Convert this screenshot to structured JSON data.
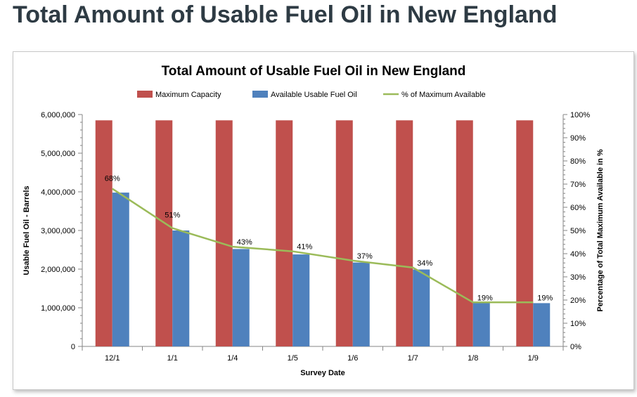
{
  "slide": {
    "title": "Total Amount of Usable Fuel Oil in New England"
  },
  "colors": {
    "max_capacity": "#c0504d",
    "available": "#4f81bd",
    "percent_line": "#9bbb59"
  },
  "chart_data": {
    "type": "bar",
    "title": "Total Amount of Usable Fuel Oil in New England",
    "xlabel": "Survey Date",
    "ylabel": "Usable Fuel Oil - Barrels",
    "y2label": "Percentage of Total Maximum Available in %",
    "categories": [
      "12/1",
      "1/1",
      "1/4",
      "1/5",
      "1/6",
      "1/7",
      "1/8",
      "1/9"
    ],
    "ylim": [
      0,
      6000000
    ],
    "y2lim": [
      0,
      100
    ],
    "yticks": [
      "0",
      "1,000,000",
      "2,000,000",
      "3,000,000",
      "4,000,000",
      "5,000,000",
      "6,000,000"
    ],
    "y2ticks": [
      "0%",
      "10%",
      "20%",
      "30%",
      "40%",
      "50%",
      "60%",
      "70%",
      "80%",
      "90%",
      "100%"
    ],
    "legend_position": "top",
    "series": [
      {
        "name": "Maximum Capacity",
        "type": "bar",
        "axis": "left",
        "values": [
          5850000,
          5850000,
          5850000,
          5850000,
          5850000,
          5850000,
          5850000,
          5850000
        ]
      },
      {
        "name": "Available Usable Fuel Oil",
        "type": "bar",
        "axis": "left",
        "values": [
          3980000,
          3000000,
          2520000,
          2380000,
          2170000,
          1990000,
          1120000,
          1120000
        ]
      },
      {
        "name": "% of Maximum Available",
        "type": "line",
        "axis": "right",
        "values": [
          68,
          51,
          43,
          41,
          37,
          34,
          19,
          19
        ],
        "labels": [
          "68%",
          "51%",
          "43%",
          "41%",
          "37%",
          "34%",
          "19%",
          "19%"
        ]
      }
    ]
  }
}
